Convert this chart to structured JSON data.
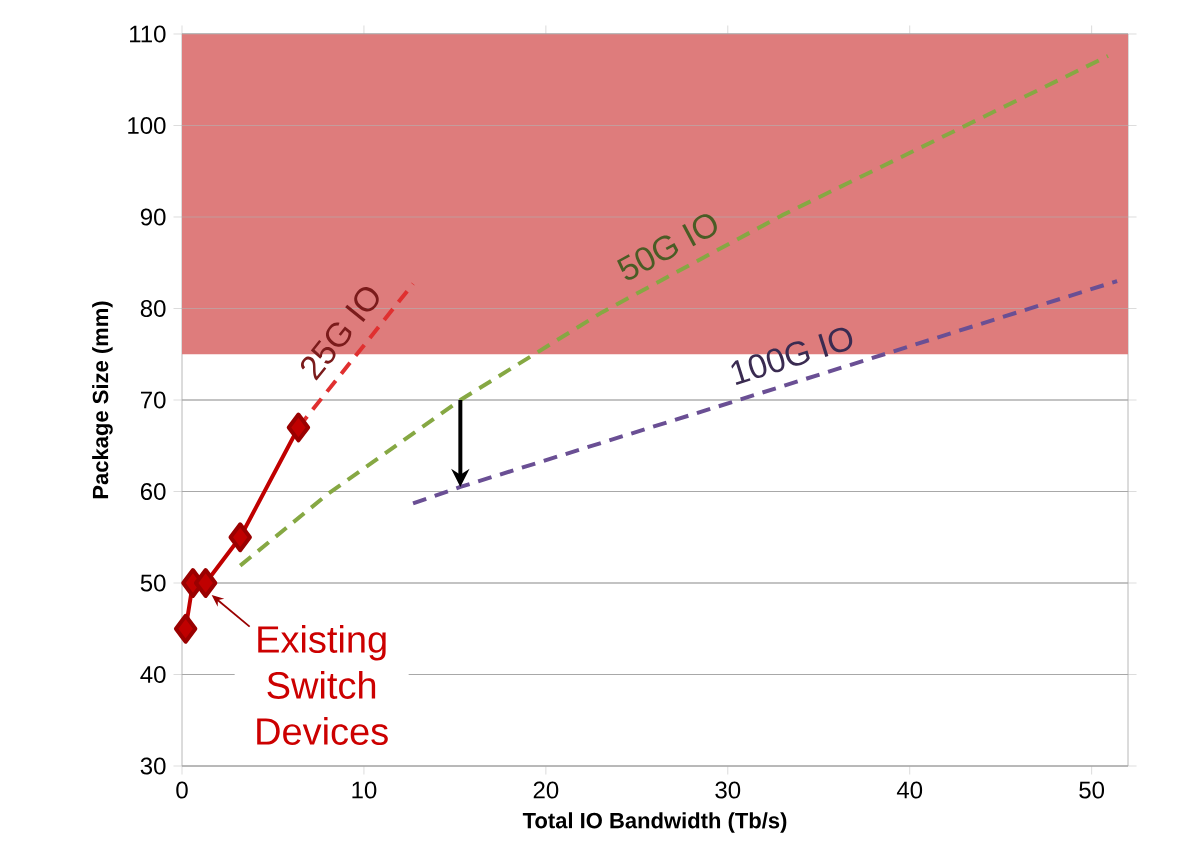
{
  "chart_data": {
    "type": "line",
    "xlabel": "Total IO Bandwidth (Tb/s)",
    "ylabel": "Package Size (mm)",
    "xlim": [
      0,
      52
    ],
    "ylim": [
      30,
      110
    ],
    "xticks": [
      0,
      10,
      20,
      30,
      40,
      50
    ],
    "yticks": [
      30,
      40,
      50,
      60,
      70,
      80,
      90,
      100,
      110
    ],
    "grid": "y",
    "series": [
      {
        "color": "#c00000",
        "marker": "diamond",
        "line_style": "solid",
        "x": [
          0.2,
          0.6,
          1.3,
          3.2,
          6.4
        ],
        "values": [
          45,
          50,
          50,
          55,
          67
        ]
      },
      {
        "name": "25G IO",
        "color": "#e03030",
        "line_style": "dashed",
        "x": [
          6.4,
          12.7
        ],
        "values": [
          67,
          82.7
        ]
      },
      {
        "name": "50G IO",
        "color": "#86a843",
        "line_style": "dashed",
        "x": [
          3.2,
          8.0,
          15.3,
          23.1,
          33.0,
          50.9
        ],
        "values": [
          51.9,
          59.7,
          70,
          79.6,
          90.2,
          107.6
        ]
      },
      {
        "name": "100G IO",
        "color": "#6a4f94",
        "line_style": "dashed",
        "x": [
          12.7,
          15.3,
          30.6,
          51.4
        ],
        "values": [
          58.7,
          60.5,
          70,
          83
        ]
      }
    ],
    "bands": [
      {
        "axis": "y",
        "from": 75,
        "to": 110,
        "color": "#de7c7c"
      }
    ],
    "annotations": [
      {
        "text": "Existing Switch Devices",
        "x": 1.3,
        "y": 50
      }
    ]
  }
}
